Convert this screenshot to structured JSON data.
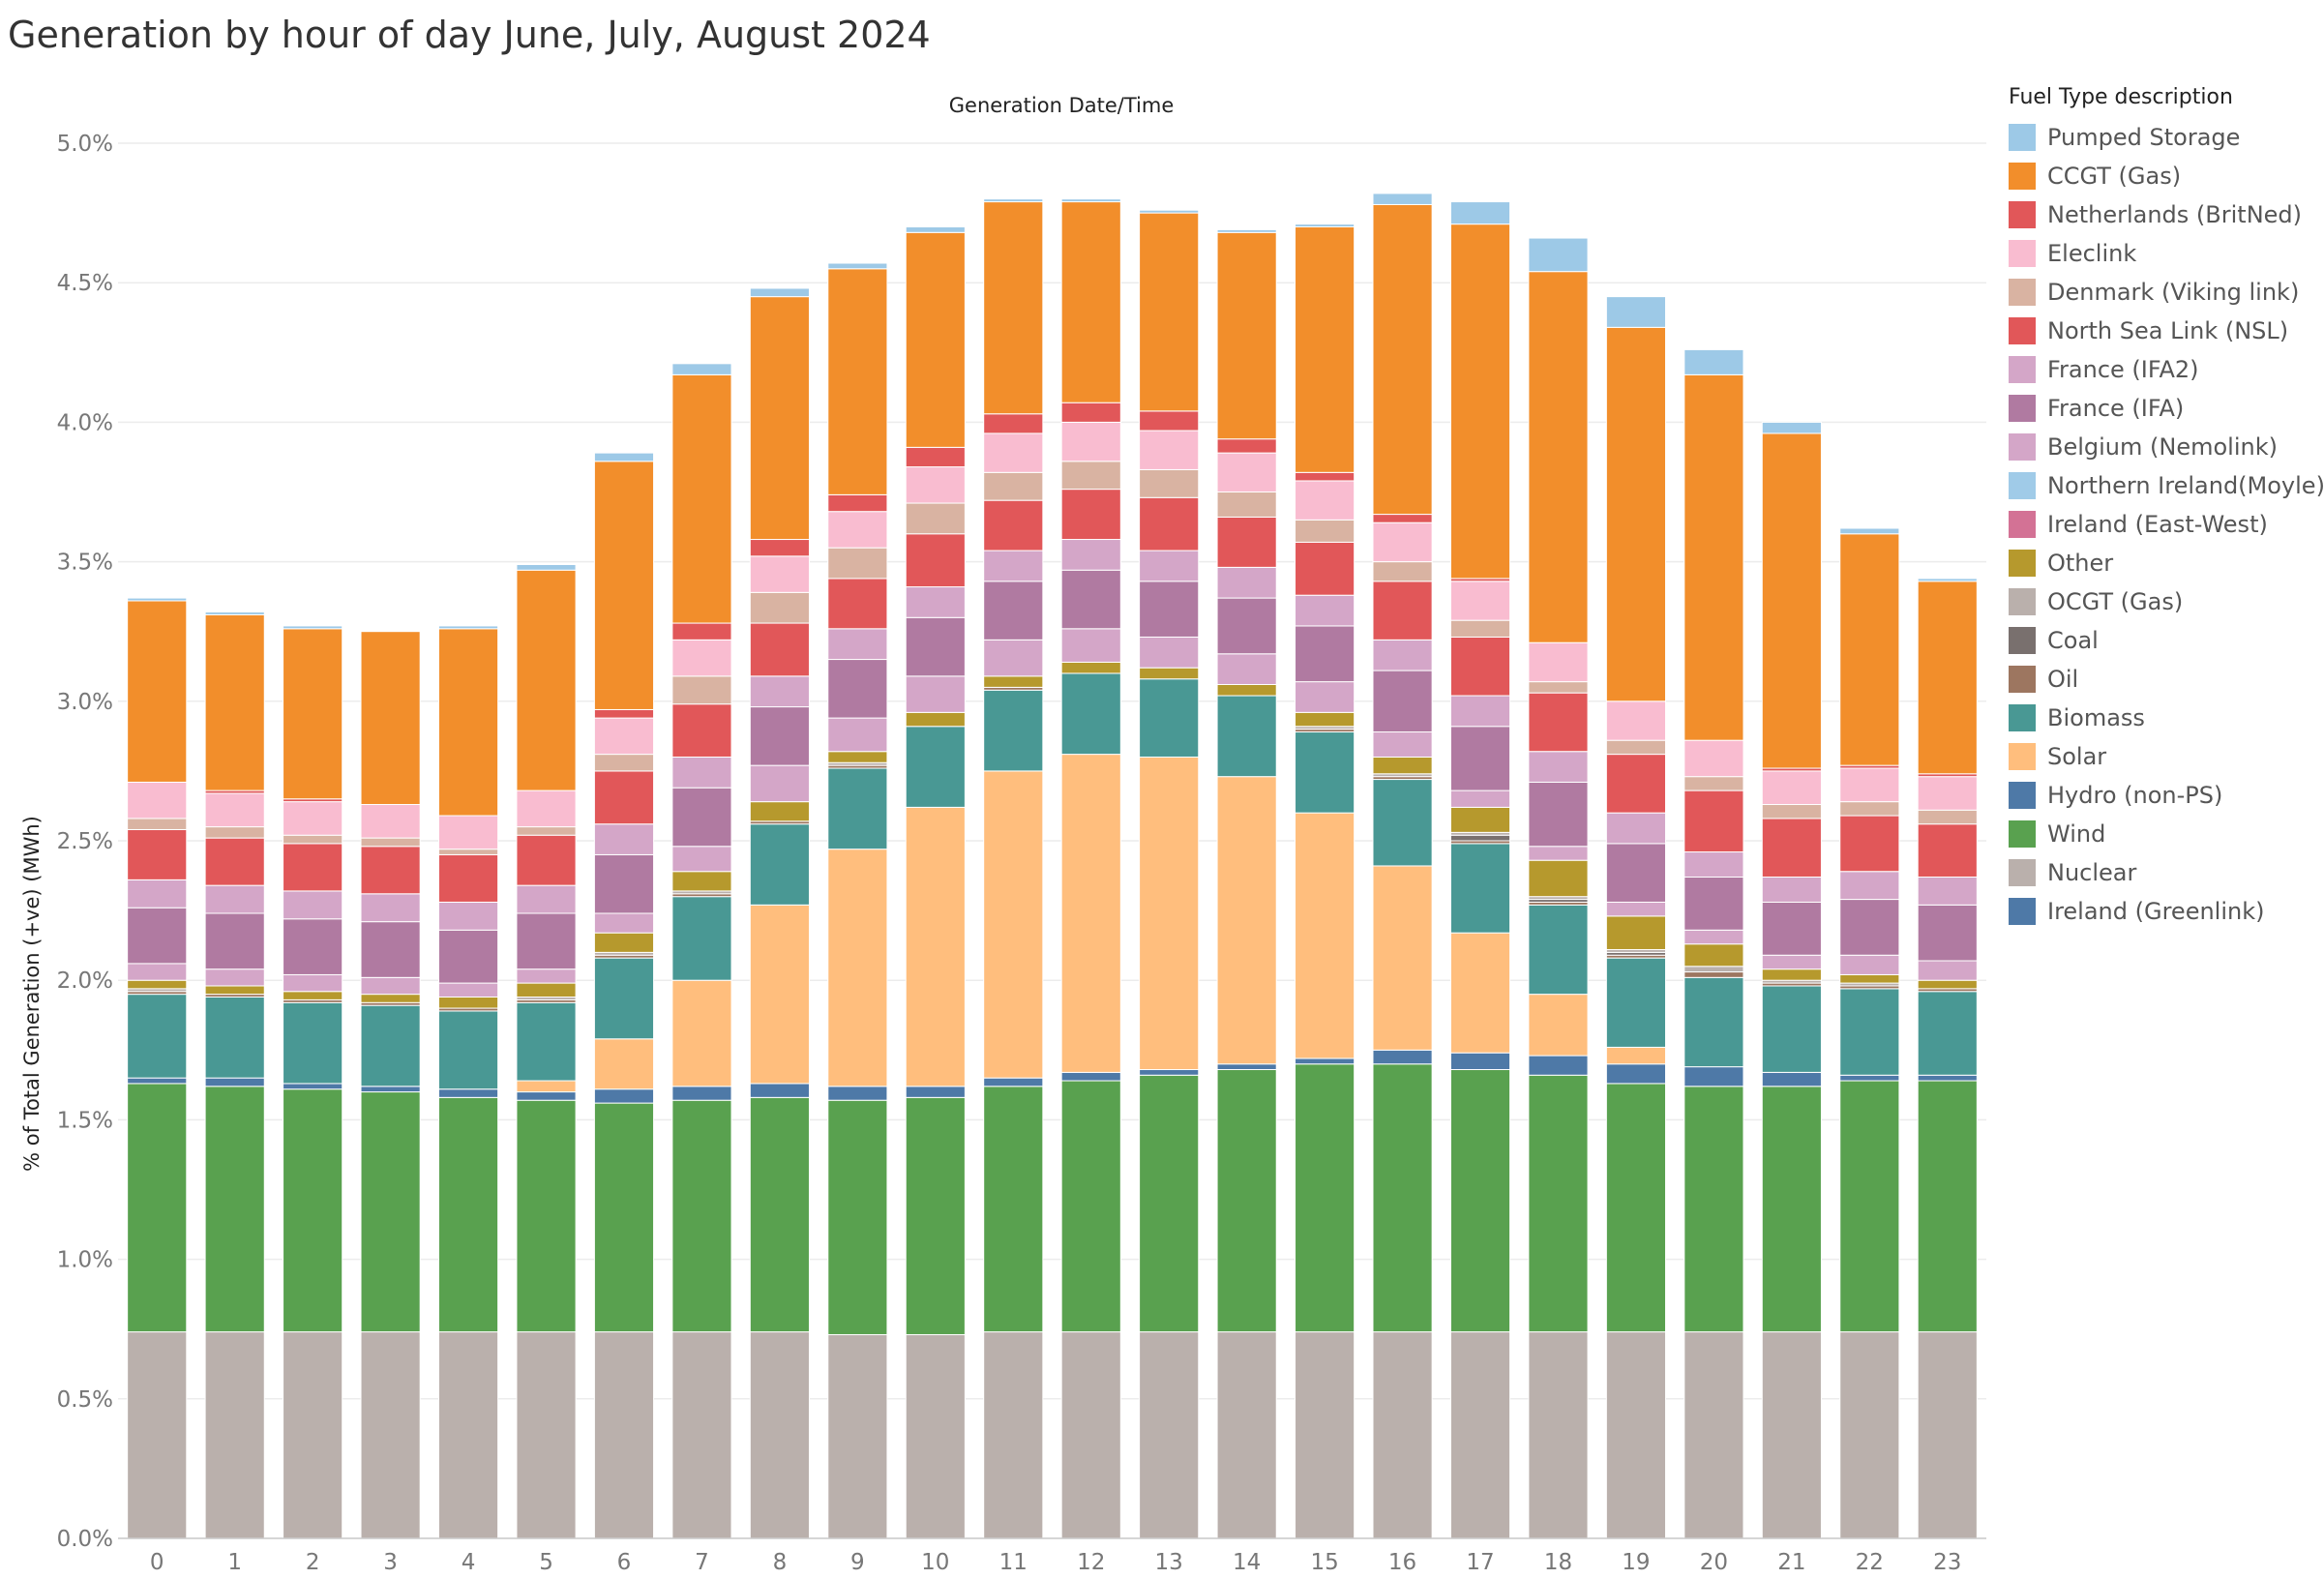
{
  "chart_data": {
    "type": "bar",
    "stacked": true,
    "title": "Generation by hour of day June, July, August  2024",
    "column_header": "Generation Date/Time",
    "ylabel": "% of Total Generation (+ve) (MWh)",
    "xlabel": "",
    "ylim": [
      0,
      5.0
    ],
    "yticks": [
      "0.0%",
      "0.5%",
      "1.0%",
      "1.5%",
      "2.0%",
      "2.5%",
      "3.0%",
      "3.5%",
      "4.0%",
      "4.5%",
      "5.0%"
    ],
    "categories": [
      "0",
      "1",
      "2",
      "3",
      "4",
      "5",
      "6",
      "7",
      "8",
      "9",
      "10",
      "11",
      "12",
      "13",
      "14",
      "15",
      "16",
      "17",
      "18",
      "19",
      "20",
      "21",
      "22",
      "23"
    ],
    "grid": true,
    "legend_position": "right",
    "legend_title": "Fuel Type description",
    "legend": [
      {
        "name": "Pumped Storage",
        "color": "#9dc9e7"
      },
      {
        "name": "CCGT (Gas)",
        "color": "#f28e2b"
      },
      {
        "name": "Netherlands (BritNed)",
        "color": "#e15759"
      },
      {
        "name": "Eleclink",
        "color": "#f9bcd0"
      },
      {
        "name": "Denmark (Viking link)",
        "color": "#d9b3a2"
      },
      {
        "name": "North Sea Link (NSL)",
        "color": "#e15759"
      },
      {
        "name": "France (IFA2)",
        "color": "#d4a6c8"
      },
      {
        "name": "France (IFA)",
        "color": "#b07aa1"
      },
      {
        "name": "Belgium (Nemolink)",
        "color": "#d4a6c8"
      },
      {
        "name": "Northern Ireland(Moyle)",
        "color": "#a0cbe8"
      },
      {
        "name": "Ireland (East-West)",
        "color": "#d37295"
      },
      {
        "name": "Other",
        "color": "#b6992d"
      },
      {
        "name": "OCGT (Gas)",
        "color": "#bab0ac"
      },
      {
        "name": "Coal",
        "color": "#79706e"
      },
      {
        "name": "Oil",
        "color": "#9d7660"
      },
      {
        "name": "Biomass",
        "color": "#499894"
      },
      {
        "name": "Solar",
        "color": "#ffbe7d"
      },
      {
        "name": "Hydro (non-PS)",
        "color": "#4e79a7"
      },
      {
        "name": "Wind",
        "color": "#59a14f"
      },
      {
        "name": "Nuclear",
        "color": "#bab0ac"
      },
      {
        "name": "Ireland (Greenlink)",
        "color": "#4e79a7"
      }
    ],
    "series": [
      {
        "name": "Nuclear",
        "color": "#bab0ac",
        "values": [
          0.74,
          0.74,
          0.74,
          0.74,
          0.74,
          0.74,
          0.74,
          0.74,
          0.74,
          0.73,
          0.73,
          0.74,
          0.74,
          0.74,
          0.74,
          0.74,
          0.74,
          0.74,
          0.74,
          0.74,
          0.74,
          0.74,
          0.74,
          0.74
        ]
      },
      {
        "name": "Wind",
        "color": "#59a14f",
        "values": [
          0.89,
          0.88,
          0.87,
          0.86,
          0.84,
          0.83,
          0.82,
          0.83,
          0.84,
          0.84,
          0.85,
          0.88,
          0.9,
          0.92,
          0.94,
          0.96,
          0.96,
          0.94,
          0.92,
          0.89,
          0.88,
          0.88,
          0.9,
          0.9
        ]
      },
      {
        "name": "Hydro (non-PS)",
        "color": "#4e79a7",
        "values": [
          0.02,
          0.03,
          0.02,
          0.02,
          0.03,
          0.03,
          0.05,
          0.05,
          0.05,
          0.05,
          0.04,
          0.03,
          0.03,
          0.02,
          0.02,
          0.02,
          0.05,
          0.06,
          0.07,
          0.07,
          0.07,
          0.05,
          0.02,
          0.02
        ]
      },
      {
        "name": "Solar",
        "color": "#ffbe7d",
        "values": [
          0.0,
          0.0,
          0.0,
          0.0,
          0.0,
          0.04,
          0.18,
          0.38,
          0.64,
          0.85,
          1.0,
          1.1,
          1.14,
          1.12,
          1.03,
          0.88,
          0.66,
          0.43,
          0.22,
          0.06,
          0.0,
          0.0,
          0.0,
          0.0
        ]
      },
      {
        "name": "Biomass",
        "color": "#499894",
        "values": [
          0.3,
          0.29,
          0.29,
          0.29,
          0.28,
          0.28,
          0.29,
          0.3,
          0.29,
          0.29,
          0.29,
          0.29,
          0.29,
          0.28,
          0.29,
          0.29,
          0.31,
          0.32,
          0.32,
          0.32,
          0.32,
          0.31,
          0.31,
          0.3
        ]
      },
      {
        "name": "Oil",
        "color": "#9d7660",
        "values": [
          0.01,
          0.01,
          0.01,
          0.01,
          0.01,
          0.01,
          0.01,
          0.01,
          0.01,
          0.01,
          0.0,
          0.01,
          0.0,
          0.0,
          0.0,
          0.01,
          0.01,
          0.01,
          0.01,
          0.01,
          0.02,
          0.01,
          0.01,
          0.01
        ]
      },
      {
        "name": "Coal",
        "color": "#79706e",
        "values": [
          0.0,
          0.0,
          0.0,
          0.0,
          0.0,
          0.0,
          0.0,
          0.0,
          0.0,
          0.0,
          0.0,
          0.0,
          0.0,
          0.0,
          0.0,
          0.0,
          0.0,
          0.02,
          0.01,
          0.01,
          0.0,
          0.0,
          0.0,
          0.0
        ]
      },
      {
        "name": "OCGT (Gas)",
        "color": "#bab0ac",
        "values": [
          0.01,
          0.0,
          0.0,
          0.0,
          0.0,
          0.01,
          0.01,
          0.01,
          0.0,
          0.01,
          0.0,
          0.0,
          0.0,
          0.0,
          0.0,
          0.01,
          0.01,
          0.01,
          0.01,
          0.01,
          0.02,
          0.01,
          0.01,
          0.0
        ]
      },
      {
        "name": "Other",
        "color": "#b6992d",
        "values": [
          0.03,
          0.03,
          0.03,
          0.03,
          0.04,
          0.05,
          0.07,
          0.07,
          0.07,
          0.04,
          0.05,
          0.04,
          0.04,
          0.04,
          0.04,
          0.05,
          0.06,
          0.09,
          0.13,
          0.12,
          0.08,
          0.04,
          0.03,
          0.03
        ]
      },
      {
        "name": "Ireland (East-West)",
        "color": "#d37295",
        "values": [
          0.0,
          0.0,
          0.0,
          0.0,
          0.0,
          0.0,
          0.0,
          0.0,
          0.0,
          0.0,
          0.0,
          0.0,
          0.0,
          0.0,
          0.0,
          0.0,
          0.0,
          0.0,
          0.0,
          0.0,
          0.0,
          0.0,
          0.0,
          0.0
        ]
      },
      {
        "name": "Northern Ireland(Moyle)",
        "color": "#a0cbe8",
        "values": [
          0.0,
          0.0,
          0.0,
          0.0,
          0.0,
          0.0,
          0.0,
          0.0,
          0.0,
          0.0,
          0.0,
          0.0,
          0.0,
          0.0,
          0.0,
          0.0,
          0.0,
          0.0,
          0.0,
          0.0,
          0.0,
          0.0,
          0.0,
          0.0
        ]
      },
      {
        "name": "Belgium (Nemolink)",
        "color": "#d4a6c8",
        "values": [
          0.06,
          0.06,
          0.06,
          0.06,
          0.05,
          0.05,
          0.07,
          0.09,
          0.13,
          0.12,
          0.13,
          0.13,
          0.12,
          0.11,
          0.11,
          0.11,
          0.09,
          0.06,
          0.05,
          0.05,
          0.05,
          0.05,
          0.07,
          0.07
        ]
      },
      {
        "name": "France (IFA)",
        "color": "#b07aa1",
        "values": [
          0.2,
          0.2,
          0.2,
          0.2,
          0.19,
          0.2,
          0.21,
          0.21,
          0.21,
          0.21,
          0.21,
          0.21,
          0.21,
          0.2,
          0.2,
          0.2,
          0.22,
          0.23,
          0.23,
          0.21,
          0.19,
          0.19,
          0.2,
          0.2
        ]
      },
      {
        "name": "France (IFA2)",
        "color": "#d4a6c8",
        "values": [
          0.1,
          0.1,
          0.1,
          0.1,
          0.1,
          0.1,
          0.11,
          0.11,
          0.11,
          0.11,
          0.11,
          0.11,
          0.11,
          0.11,
          0.11,
          0.11,
          0.11,
          0.11,
          0.11,
          0.11,
          0.09,
          0.09,
          0.1,
          0.1
        ]
      },
      {
        "name": "North Sea Link (NSL)",
        "color": "#e15759",
        "values": [
          0.18,
          0.17,
          0.17,
          0.17,
          0.17,
          0.18,
          0.19,
          0.19,
          0.19,
          0.18,
          0.19,
          0.18,
          0.18,
          0.19,
          0.18,
          0.19,
          0.21,
          0.21,
          0.21,
          0.21,
          0.22,
          0.21,
          0.2,
          0.19
        ]
      },
      {
        "name": "Denmark (Viking link)",
        "color": "#d9b3a2",
        "values": [
          0.04,
          0.04,
          0.03,
          0.03,
          0.02,
          0.03,
          0.06,
          0.1,
          0.11,
          0.11,
          0.11,
          0.1,
          0.1,
          0.1,
          0.09,
          0.08,
          0.07,
          0.06,
          0.04,
          0.05,
          0.05,
          0.05,
          0.05,
          0.05
        ]
      },
      {
        "name": "Eleclink",
        "color": "#f9bcd0",
        "values": [
          0.13,
          0.12,
          0.12,
          0.12,
          0.12,
          0.13,
          0.13,
          0.13,
          0.13,
          0.13,
          0.13,
          0.14,
          0.14,
          0.14,
          0.14,
          0.14,
          0.14,
          0.14,
          0.14,
          0.14,
          0.13,
          0.12,
          0.12,
          0.12
        ]
      },
      {
        "name": "Netherlands (BritNed)",
        "color": "#e15759",
        "values": [
          0.0,
          0.01,
          0.01,
          0.0,
          0.0,
          0.0,
          0.03,
          0.06,
          0.06,
          0.06,
          0.07,
          0.07,
          0.07,
          0.07,
          0.05,
          0.03,
          0.03,
          0.01,
          0.0,
          0.0,
          0.0,
          0.01,
          0.01,
          0.01
        ]
      },
      {
        "name": "CCGT (Gas)",
        "color": "#f28e2b",
        "values": [
          0.65,
          0.63,
          0.61,
          0.62,
          0.67,
          0.79,
          0.89,
          0.89,
          0.87,
          0.81,
          0.77,
          0.76,
          0.72,
          0.71,
          0.74,
          0.88,
          1.11,
          1.27,
          1.33,
          1.34,
          1.31,
          1.2,
          0.83,
          0.69
        ]
      },
      {
        "name": "Pumped Storage",
        "color": "#9dc9e7",
        "values": [
          0.01,
          0.01,
          0.01,
          0.0,
          0.01,
          0.02,
          0.03,
          0.04,
          0.03,
          0.02,
          0.02,
          0.01,
          0.01,
          0.01,
          0.01,
          0.01,
          0.04,
          0.08,
          0.12,
          0.11,
          0.09,
          0.04,
          0.02,
          0.01
        ]
      }
    ]
  }
}
